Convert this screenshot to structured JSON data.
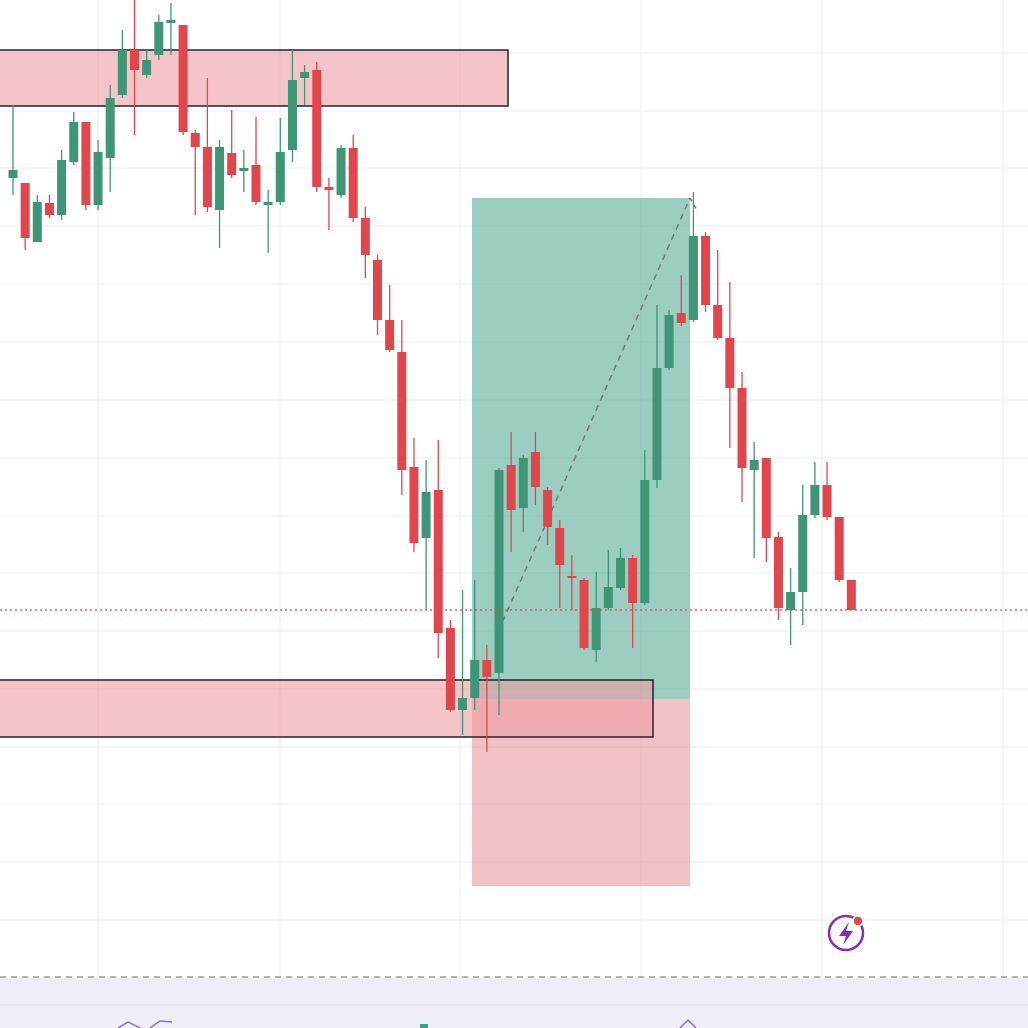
{
  "chart_data": {
    "type": "candlestick",
    "up_color": "#3f9677",
    "down_color": "#e0474c",
    "ylim": [
      0,
      1028
    ],
    "series": [
      {
        "open": [
          850,
          845,
          786,
          825,
          813,
          866,
          906,
          823,
          870,
          933,
          978,
          953,
          973,
          1005,
          1003,
          895,
          881,
          818,
          875,
          857,
          863,
          823,
          826,
          878,
          950,
          958,
          841,
          833,
          880,
          810,
          768,
          708,
          676,
          561,
          490,
          538,
          400,
          318,
          330,
          368,
          355,
          563,
          520,
          576,
          538,
          500,
          452,
          448,
          378,
          420,
          440,
          470,
          425,
          548,
          660,
          715,
          708,
          792,
          723,
          690,
          640,
          558,
          570,
          491,
          418,
          436,
          513,
          543,
          511,
          448
        ],
        "high": [
          923,
          845,
          833,
          833,
          878,
          916,
          906,
          888,
          943,
          998,
          1028,
          978,
          1013,
          1025,
          1003,
          898,
          950,
          888,
          918,
          878,
          911,
          838,
          910,
          978,
          963,
          966,
          850,
          883,
          893,
          821,
          773,
          743,
          708,
          590,
          568,
          588,
          408,
          438,
          448,
          383,
          560,
          596,
          573,
          596,
          541,
          508,
          473,
          450,
          456,
          478,
          480,
          473,
          578,
          723,
          718,
          753,
          836,
          796,
          778,
          746,
          656,
          586,
          570,
          496,
          460,
          543,
          566,
          566,
          511,
          448
        ],
        "low": [
          833,
          778,
          786,
          810,
          808,
          863,
          818,
          818,
          836,
          930,
          893,
          950,
          968,
          973,
          893,
          813,
          816,
          780,
          850,
          836,
          823,
          775,
          823,
          866,
          923,
          836,
          798,
          830,
          806,
          750,
          693,
          676,
          533,
          476,
          418,
          370,
          316,
          293,
          318,
          276,
          313,
          476,
          496,
          523,
          483,
          420,
          418,
          378,
          366,
          418,
          438,
          380,
          423,
          540,
          658,
          702,
          706,
          716,
          688,
          580,
          526,
          470,
          466,
          408,
          383,
          403,
          510,
          508,
          446,
          418
        ],
        "close": [
          858,
          790,
          826,
          813,
          868,
          906,
          823,
          876,
          930,
          978,
          958,
          968,
          1006,
          1008,
          896,
          881,
          821,
          881,
          853,
          860,
          826,
          826,
          876,
          948,
          956,
          841,
          838,
          880,
          810,
          773,
          708,
          678,
          558,
          485,
          536,
          395,
          318,
          330,
          368,
          351,
          558,
          518,
          570,
          541,
          501,
          463,
          450,
          380,
          420,
          441,
          470,
          425,
          548,
          660,
          713,
          705,
          792,
          723,
          690,
          640,
          560,
          568,
          490,
          420,
          436,
          513,
          543,
          511,
          448,
          418
        ]
      }
    ]
  }
}
